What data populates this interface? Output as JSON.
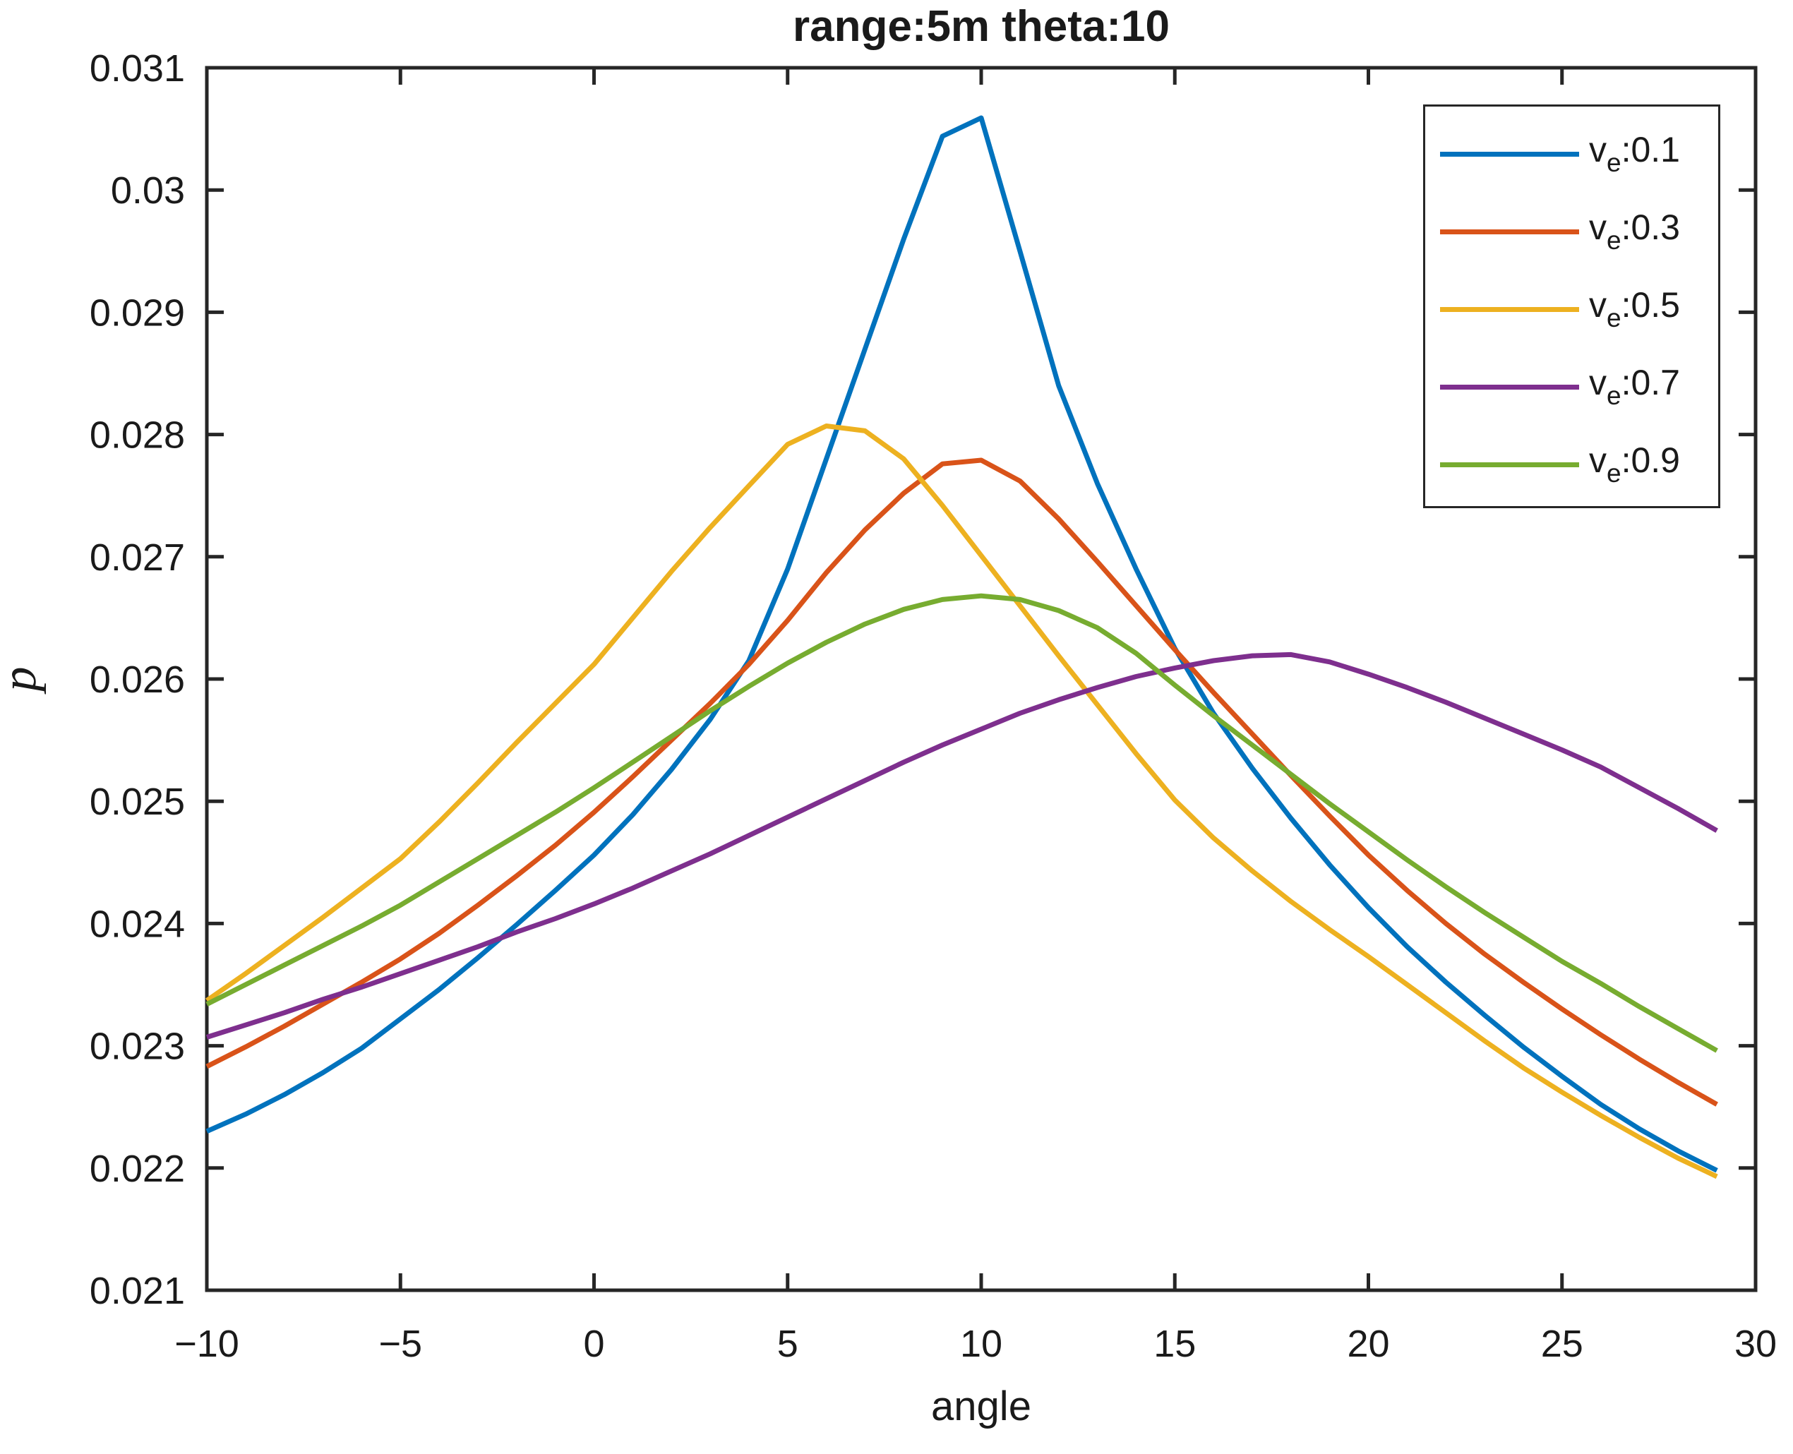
{
  "figure": {
    "background": "#ffffff",
    "axes_color": "#262626",
    "text_color": "#1a1a1a"
  },
  "chart_data": {
    "type": "line",
    "title": "range:5m theta:10",
    "xlabel": "angle",
    "ylabel": "p",
    "xlim": [
      -10,
      30
    ],
    "ylim": [
      0.021,
      0.031
    ],
    "grid": false,
    "legend_position": "top-right",
    "xticks": [
      -10,
      -5,
      0,
      5,
      10,
      15,
      20,
      25,
      30
    ],
    "xtick_labels": [
      "−10",
      "−5",
      "0",
      "5",
      "10",
      "15",
      "20",
      "25",
      "30"
    ],
    "yticks": [
      0.021,
      0.022,
      0.023,
      0.024,
      0.025,
      0.026,
      0.027,
      0.028,
      0.029,
      0.03,
      0.031
    ],
    "ytick_labels": [
      "0.021",
      "0.022",
      "0.023",
      "0.024",
      "0.025",
      "0.026",
      "0.027",
      "0.028",
      "0.029",
      "0.03",
      "0.031"
    ],
    "x": [
      -10,
      -9,
      -8,
      -7,
      -6,
      -5,
      -4,
      -3,
      -2,
      -1,
      0,
      1,
      2,
      3,
      4,
      5,
      6,
      7,
      8,
      9,
      10,
      11,
      12,
      13,
      14,
      15,
      16,
      17,
      18,
      19,
      20,
      21,
      22,
      23,
      24,
      25,
      26,
      27,
      28,
      29
    ],
    "series": [
      {
        "name": "ve-0.1",
        "label": {
          "base": "v",
          "sub": "e",
          "rest": ":0.1"
        },
        "color": "#0072BD",
        "values": [
          0.0223,
          0.02244,
          0.0226,
          0.02278,
          0.02298,
          0.02322,
          0.02346,
          0.02372,
          0.02399,
          0.02427,
          0.02456,
          0.02489,
          0.02526,
          0.02567,
          0.02615,
          0.0269,
          0.0278,
          0.0287,
          0.0296,
          0.03044,
          0.03059,
          0.0295,
          0.0284,
          0.0276,
          0.0269,
          0.02625,
          0.02572,
          0.02527,
          0.02486,
          0.02448,
          0.02413,
          0.02381,
          0.02352,
          0.02325,
          0.02299,
          0.02275,
          0.02252,
          0.02232,
          0.02214,
          0.02198
        ]
      },
      {
        "name": "ve-0.3",
        "label": {
          "base": "v",
          "sub": "e",
          "rest": ":0.3"
        },
        "color": "#D95319",
        "values": [
          0.02283,
          0.02299,
          0.02316,
          0.02334,
          0.02352,
          0.02371,
          0.02392,
          0.02415,
          0.02439,
          0.02464,
          0.02491,
          0.0252,
          0.0255,
          0.0258,
          0.02612,
          0.02648,
          0.02687,
          0.02722,
          0.02752,
          0.02776,
          0.02779,
          0.02762,
          0.02731,
          0.02696,
          0.0266,
          0.02624,
          0.02589,
          0.02555,
          0.02521,
          0.02488,
          0.02456,
          0.02427,
          0.024,
          0.02375,
          0.02352,
          0.0233,
          0.02309,
          0.02289,
          0.0227,
          0.02252
        ]
      },
      {
        "name": "ve-0.5",
        "label": {
          "base": "v",
          "sub": "e",
          "rest": ":0.5"
        },
        "color": "#EDB120",
        "values": [
          0.02337,
          0.02359,
          0.02382,
          0.02405,
          0.02429,
          0.02453,
          0.02483,
          0.02515,
          0.02548,
          0.0258,
          0.02612,
          0.0265,
          0.02688,
          0.02724,
          0.02758,
          0.02792,
          0.02807,
          0.02803,
          0.0278,
          0.02742,
          0.02701,
          0.0266,
          0.02619,
          0.02579,
          0.02539,
          0.02501,
          0.0247,
          0.02443,
          0.02418,
          0.02395,
          0.02373,
          0.0235,
          0.02327,
          0.02304,
          0.02282,
          0.02262,
          0.02243,
          0.02225,
          0.02208,
          0.02193
        ]
      },
      {
        "name": "ve-0.7",
        "label": {
          "base": "v",
          "sub": "e",
          "rest": ":0.7"
        },
        "color": "#7E2F8E",
        "values": [
          0.02307,
          0.02317,
          0.02327,
          0.02338,
          0.02348,
          0.02359,
          0.0237,
          0.02381,
          0.02393,
          0.02404,
          0.02416,
          0.02429,
          0.02443,
          0.02457,
          0.02472,
          0.02487,
          0.02502,
          0.02517,
          0.02532,
          0.02546,
          0.02559,
          0.02572,
          0.02583,
          0.02593,
          0.02602,
          0.02609,
          0.02615,
          0.02619,
          0.0262,
          0.02614,
          0.02604,
          0.02593,
          0.02581,
          0.02568,
          0.02555,
          0.02542,
          0.02528,
          0.02511,
          0.02494,
          0.02476
        ]
      },
      {
        "name": "ve-0.9",
        "label": {
          "base": "v",
          "sub": "e",
          "rest": ":0.9"
        },
        "color": "#77AC30",
        "values": [
          0.02334,
          0.0235,
          0.02366,
          0.02382,
          0.02398,
          0.02415,
          0.02434,
          0.02453,
          0.02472,
          0.02491,
          0.02511,
          0.02532,
          0.02553,
          0.02574,
          0.02594,
          0.02613,
          0.0263,
          0.02645,
          0.02657,
          0.02665,
          0.02668,
          0.02665,
          0.02656,
          0.02642,
          0.02621,
          0.02595,
          0.0257,
          0.02546,
          0.02522,
          0.02498,
          0.02475,
          0.02452,
          0.0243,
          0.02409,
          0.02389,
          0.02369,
          0.02351,
          0.02332,
          0.02314,
          0.02296
        ]
      }
    ]
  }
}
